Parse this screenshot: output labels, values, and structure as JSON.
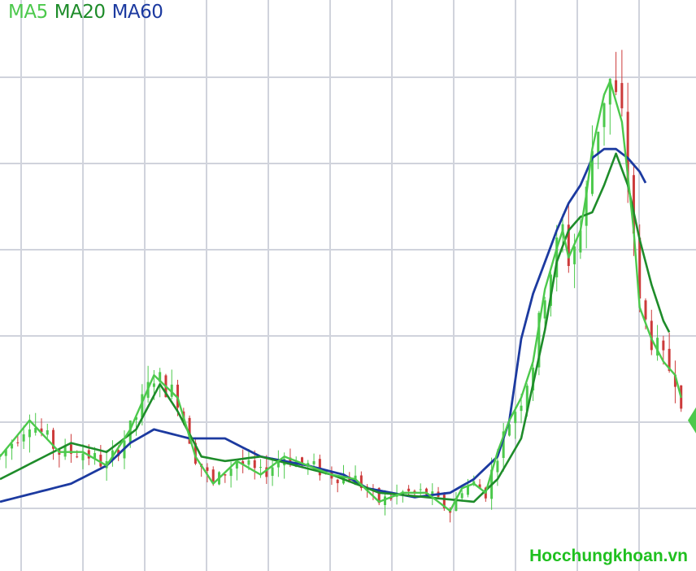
{
  "chart_data": {
    "type": "line",
    "title": "",
    "xlabel": "",
    "ylabel": "",
    "grid": true,
    "legend_position": "top-left",
    "price_range": [
      0,
      100
    ],
    "series": [
      {
        "name": "MA5",
        "color": "#4cc94c",
        "anchors": [
          [
            0,
            12
          ],
          [
            5,
            20
          ],
          [
            10,
            13
          ],
          [
            14,
            13
          ],
          [
            18,
            10
          ],
          [
            22,
            18
          ],
          [
            26,
            30
          ],
          [
            30,
            25
          ],
          [
            33,
            12
          ],
          [
            36,
            6
          ],
          [
            40,
            11
          ],
          [
            44,
            8
          ],
          [
            48,
            12
          ],
          [
            52,
            10
          ],
          [
            56,
            8
          ],
          [
            60,
            7
          ],
          [
            64,
            2
          ],
          [
            68,
            4
          ],
          [
            72,
            4
          ],
          [
            74,
            2
          ],
          [
            76,
            0
          ],
          [
            78,
            5
          ],
          [
            80,
            6
          ],
          [
            82,
            4
          ],
          [
            84,
            13
          ],
          [
            86,
            20
          ],
          [
            88,
            25
          ],
          [
            90,
            33
          ],
          [
            92,
            49
          ],
          [
            94,
            58
          ],
          [
            95,
            62
          ],
          [
            96,
            56
          ],
          [
            98,
            62
          ],
          [
            99,
            70
          ],
          [
            100,
            80
          ],
          [
            102,
            92
          ],
          [
            103,
            95
          ],
          [
            105,
            86
          ],
          [
            107,
            62
          ],
          [
            108,
            45
          ],
          [
            110,
            38
          ],
          [
            112,
            33
          ],
          [
            114,
            30
          ],
          [
            116,
            20
          ]
        ]
      },
      {
        "name": "MA20",
        "color": "#1e8c2a",
        "anchors": [
          [
            0,
            7
          ],
          [
            6,
            11
          ],
          [
            12,
            15
          ],
          [
            18,
            13
          ],
          [
            23,
            18
          ],
          [
            27,
            28
          ],
          [
            30,
            22
          ],
          [
            34,
            12
          ],
          [
            38,
            11
          ],
          [
            44,
            12
          ],
          [
            50,
            10
          ],
          [
            56,
            8
          ],
          [
            64,
            4
          ],
          [
            72,
            3
          ],
          [
            80,
            2
          ],
          [
            84,
            7
          ],
          [
            88,
            16
          ],
          [
            92,
            40
          ],
          [
            94,
            55
          ],
          [
            96,
            62
          ],
          [
            98,
            65
          ],
          [
            100,
            66
          ],
          [
            102,
            72
          ],
          [
            104,
            79
          ],
          [
            106,
            72
          ],
          [
            108,
            60
          ],
          [
            110,
            50
          ],
          [
            112,
            42
          ],
          [
            114,
            37
          ]
        ]
      },
      {
        "name": "MA60",
        "color": "#1c3aa0",
        "anchors": [
          [
            0,
            2
          ],
          [
            6,
            4
          ],
          [
            12,
            6
          ],
          [
            18,
            10
          ],
          [
            22,
            15
          ],
          [
            26,
            18
          ],
          [
            32,
            16
          ],
          [
            38,
            16
          ],
          [
            44,
            12
          ],
          [
            52,
            10
          ],
          [
            58,
            8
          ],
          [
            62,
            5
          ],
          [
            70,
            3
          ],
          [
            76,
            4
          ],
          [
            80,
            7
          ],
          [
            84,
            12
          ],
          [
            86,
            20
          ],
          [
            88,
            38
          ],
          [
            90,
            48
          ],
          [
            92,
            55
          ],
          [
            94,
            62
          ],
          [
            96,
            68
          ],
          [
            98,
            72
          ],
          [
            100,
            78
          ],
          [
            102,
            80
          ],
          [
            104,
            80
          ],
          [
            106,
            78
          ],
          [
            108,
            75
          ],
          [
            110,
            70
          ]
        ]
      }
    ]
  },
  "legend": {
    "ma5": "MA5",
    "ma20": "MA20",
    "ma60": "MA60"
  },
  "watermark": {
    "text": "Hocchungkhoan.vn",
    "color": "#1fc01f"
  },
  "colors": {
    "grid": "#d0d3dc",
    "candle_up": "#4cc94c",
    "candle_down": "#cc3a3a"
  }
}
